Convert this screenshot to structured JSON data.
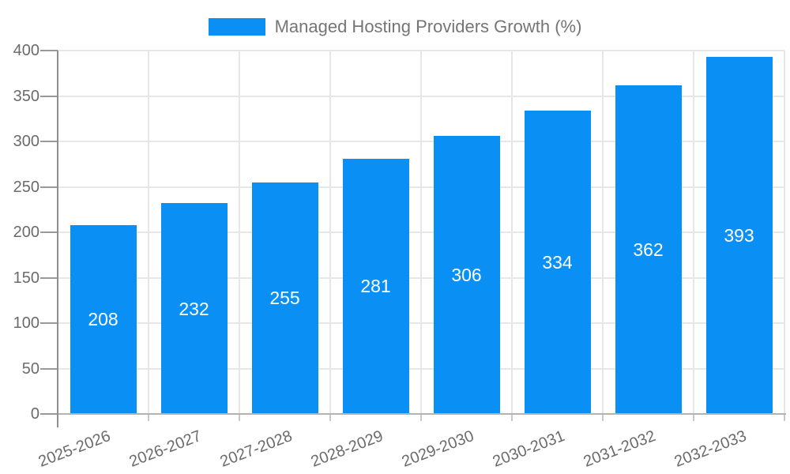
{
  "legend": {
    "label": "Managed Hosting Providers Growth (%)"
  },
  "chart_data": {
    "type": "bar",
    "title": "Managed Hosting Providers Growth (%)",
    "categories": [
      "2025-2026",
      "2026-2027",
      "2027-2028",
      "2028-2029",
      "2029-2030",
      "2030-2031",
      "2031-2032",
      "2032-2033"
    ],
    "series": [
      {
        "name": "Managed Hosting Providers Growth (%)",
        "values": [
          208,
          232,
          255,
          281,
          306,
          334,
          362,
          393
        ]
      }
    ],
    "value_labels": [
      "208",
      "232",
      "255",
      "281",
      "306",
      "334",
      "362",
      "393"
    ],
    "xlabel": "",
    "ylabel": "",
    "ylim": [
      0,
      400
    ],
    "ytick_step": 50,
    "yticks": [
      0,
      50,
      100,
      150,
      200,
      250,
      300,
      350,
      400
    ],
    "grid": true,
    "legend_position": "top",
    "x_label_rotation_deg": -21
  },
  "colors": {
    "bar": "#0a90f5",
    "grid": "#e7e7e7",
    "x_axis_line": "#b3b3b3",
    "y_axis_line": "#8f8f8f",
    "y_tick_mark": "#999999",
    "x_tick_mark": "#c9c9c9",
    "tick_label_text": "#6b6b6b",
    "legend_text": "#757575",
    "value_label_text": "#ffffff",
    "background": "#ffffff"
  }
}
